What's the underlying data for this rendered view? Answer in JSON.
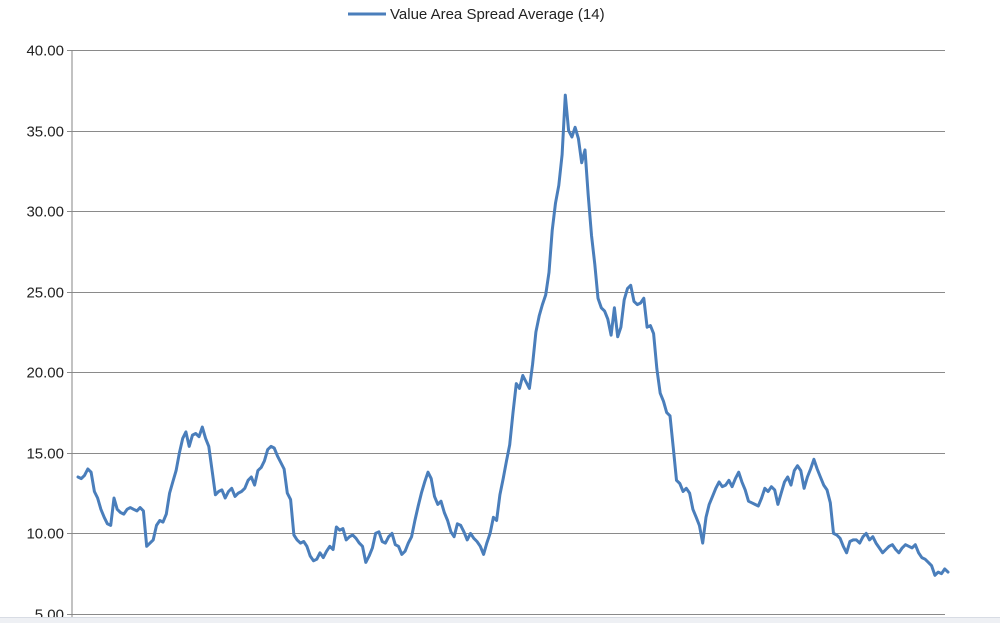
{
  "chart_data": {
    "type": "line",
    "xlabel": "",
    "ylabel": "",
    "ylim": [
      5,
      40
    ],
    "yticks": [
      "5.00",
      "10.00",
      "15.00",
      "20.00",
      "25.00",
      "30.00",
      "35.00",
      "40.00"
    ],
    "grid": true,
    "legend": "top-center",
    "series": [
      {
        "name": "Value Area Spread Average (14)",
        "color": "#4a7ebb",
        "values": [
          13.5,
          13.4,
          13.6,
          14.0,
          13.8,
          12.6,
          12.2,
          11.5,
          11.0,
          10.6,
          10.5,
          12.2,
          11.5,
          11.3,
          11.2,
          11.5,
          11.6,
          11.5,
          11.4,
          11.6,
          11.4,
          9.2,
          9.4,
          9.6,
          10.5,
          10.8,
          10.7,
          11.2,
          12.5,
          13.2,
          13.9,
          15.0,
          15.9,
          16.3,
          15.4,
          16.1,
          16.2,
          16.0,
          16.6,
          15.9,
          15.4,
          13.9,
          12.4,
          12.6,
          12.7,
          12.2,
          12.6,
          12.8,
          12.3,
          12.5,
          12.6,
          12.8,
          13.3,
          13.5,
          13.0,
          13.9,
          14.1,
          14.5,
          15.2,
          15.4,
          15.3,
          14.8,
          14.4,
          14.0,
          12.5,
          12.1,
          9.9,
          9.6,
          9.4,
          9.5,
          9.2,
          8.6,
          8.3,
          8.4,
          8.8,
          8.5,
          8.9,
          9.2,
          9.0,
          10.4,
          10.2,
          10.3,
          9.6,
          9.8,
          9.9,
          9.7,
          9.4,
          9.2,
          8.2,
          8.6,
          9.1,
          10.0,
          10.1,
          9.5,
          9.4,
          9.8,
          10.0,
          9.3,
          9.2,
          8.7,
          8.9,
          9.4,
          9.8,
          10.8,
          11.7,
          12.5,
          13.2,
          13.8,
          13.4,
          12.3,
          11.8,
          12.0,
          11.3,
          10.8,
          10.1,
          9.8,
          10.6,
          10.5,
          10.1,
          9.6,
          10.0,
          9.7,
          9.5,
          9.2,
          8.7,
          9.4,
          10.0,
          11.0,
          10.8,
          12.4,
          13.4,
          14.5,
          15.5,
          17.5,
          19.3,
          19.0,
          19.8,
          19.4,
          19.0,
          20.5,
          22.5,
          23.5,
          24.2,
          24.8,
          26.2,
          28.8,
          30.5,
          31.6,
          33.5,
          37.2,
          35.0,
          34.6,
          35.2,
          34.5,
          33.0,
          33.8,
          31.0,
          28.5,
          26.7,
          24.6,
          24.0,
          23.8,
          23.3,
          22.3,
          24.0,
          22.2,
          22.8,
          24.5,
          25.2,
          25.4,
          24.4,
          24.2,
          24.3,
          24.6,
          22.8,
          22.9,
          22.4,
          20.2,
          18.7,
          18.2,
          17.5,
          17.3,
          15.3,
          13.3,
          13.1,
          12.6,
          12.8,
          12.5,
          11.5,
          11.0,
          10.5,
          9.4,
          11.0,
          11.8,
          12.3,
          12.8,
          13.2,
          12.9,
          13.0,
          13.3,
          12.9,
          13.4,
          13.8,
          13.2,
          12.7,
          12.0,
          11.9,
          11.8,
          11.7,
          12.2,
          12.8,
          12.6,
          12.9,
          12.7,
          11.8,
          12.5,
          13.2,
          13.5,
          13.0,
          13.9,
          14.2,
          13.9,
          12.8,
          13.5,
          14.0,
          14.6,
          14.0,
          13.5,
          13.0,
          12.7,
          11.9,
          10.0,
          9.9,
          9.7,
          9.2,
          8.8,
          9.5,
          9.6,
          9.6,
          9.4,
          9.8,
          10.0,
          9.6,
          9.8,
          9.4,
          9.1,
          8.8,
          9.0,
          9.2,
          9.3,
          9.0,
          8.8,
          9.1,
          9.3,
          9.2,
          9.1,
          9.3,
          8.8,
          8.5,
          8.4,
          8.2,
          8.0,
          7.4,
          7.6,
          7.5,
          7.8,
          7.6
        ]
      }
    ]
  },
  "legend": {
    "label": "Value Area Spread Average (14)",
    "color": "#4a7ebb"
  }
}
